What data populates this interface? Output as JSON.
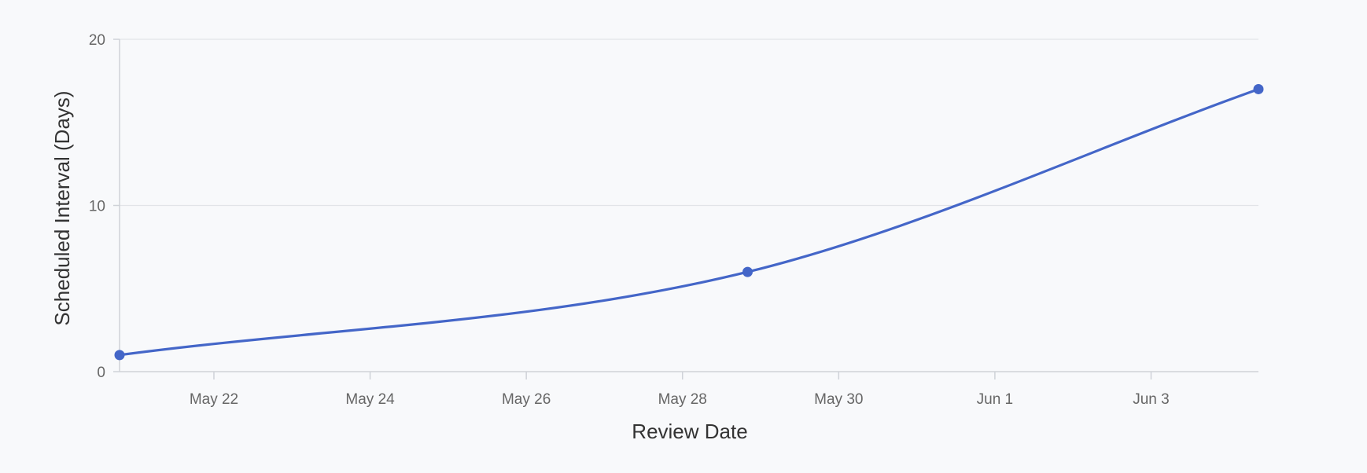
{
  "chart_data": {
    "type": "line",
    "xlabel": "Review Date",
    "ylabel": "Scheduled Interval (Days)",
    "x_ticks": [
      "2025-05-22",
      "2025-05-24",
      "2025-05-26",
      "2025-05-28",
      "2025-05-30",
      "2025-06-01",
      "2025-06-03"
    ],
    "x_tick_labels": [
      "May 22",
      "May 24",
      "May 26",
      "May 28",
      "May 30",
      "Jun 1",
      "Jun 3"
    ],
    "xlim": [
      "2025-05-20T19:00",
      "2025-06-04T09:00"
    ],
    "ylim": [
      0,
      20
    ],
    "y_ticks": [
      0,
      10,
      20
    ],
    "y_tick_labels": [
      "0",
      "10",
      "20"
    ],
    "grid": true,
    "legend": "none",
    "series": [
      {
        "color": "#4466c8",
        "points": [
          {
            "x": "2025-05-20T19:00",
            "y": 1
          },
          {
            "x": "2025-05-28T20:00",
            "y": 6
          },
          {
            "x": "2025-06-04T09:00",
            "y": 17
          }
        ]
      }
    ]
  }
}
